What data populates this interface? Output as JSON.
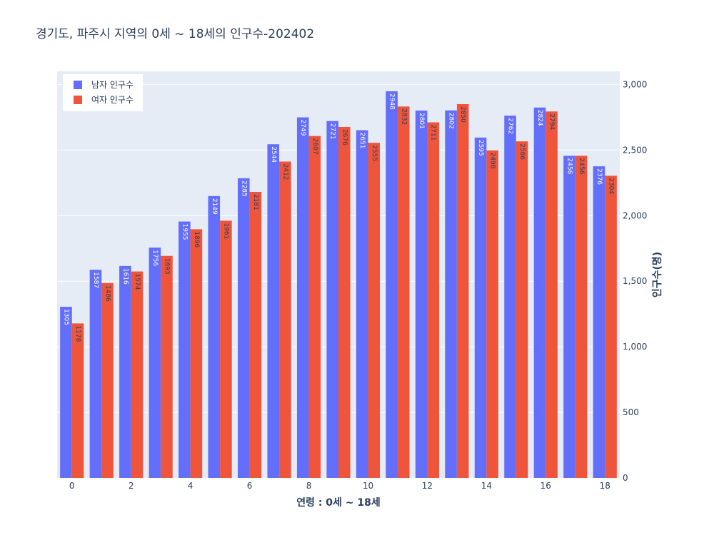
{
  "chart_data": {
    "type": "bar",
    "title": "경기도,  파주시 지역의 0세 ~ 18세의 인구수-202402",
    "xlabel": "연령 : 0세 ~ 18세",
    "ylabel": "인구수(명)",
    "categories": [
      0,
      1,
      2,
      3,
      4,
      5,
      6,
      7,
      8,
      9,
      10,
      11,
      12,
      13,
      14,
      15,
      16,
      17,
      18
    ],
    "x_ticks": [
      0,
      2,
      4,
      6,
      8,
      10,
      12,
      14,
      16,
      18
    ],
    "y_ticks": [
      0,
      500,
      1000,
      1500,
      2000,
      2500,
      3000
    ],
    "y_tick_labels": [
      "0",
      "500",
      "1,000",
      "1,500",
      "2,000",
      "2,500",
      "3,000"
    ],
    "ylim": [
      0,
      3100
    ],
    "y_axis_side": "right",
    "grid": true,
    "legend_position": "top-left",
    "series": [
      {
        "name": "남자 인구수",
        "color": "#636efa",
        "label_color": "#ffffff",
        "values": [
          1305,
          1587,
          1616,
          1756,
          1955,
          2149,
          2285,
          2544,
          2749,
          2721,
          2651,
          2948,
          2801,
          2802,
          2595,
          2762,
          2824,
          2456,
          2376
        ]
      },
      {
        "name": "여자 인구수",
        "color": "#ef553b",
        "label_color": "#2a3f5f",
        "values": [
          1178,
          1486,
          1574,
          1693,
          1896,
          1961,
          2181,
          2412,
          2607,
          2676,
          2555,
          2832,
          2711,
          2850,
          2498,
          2566,
          2794,
          2456,
          2304
        ]
      }
    ]
  }
}
